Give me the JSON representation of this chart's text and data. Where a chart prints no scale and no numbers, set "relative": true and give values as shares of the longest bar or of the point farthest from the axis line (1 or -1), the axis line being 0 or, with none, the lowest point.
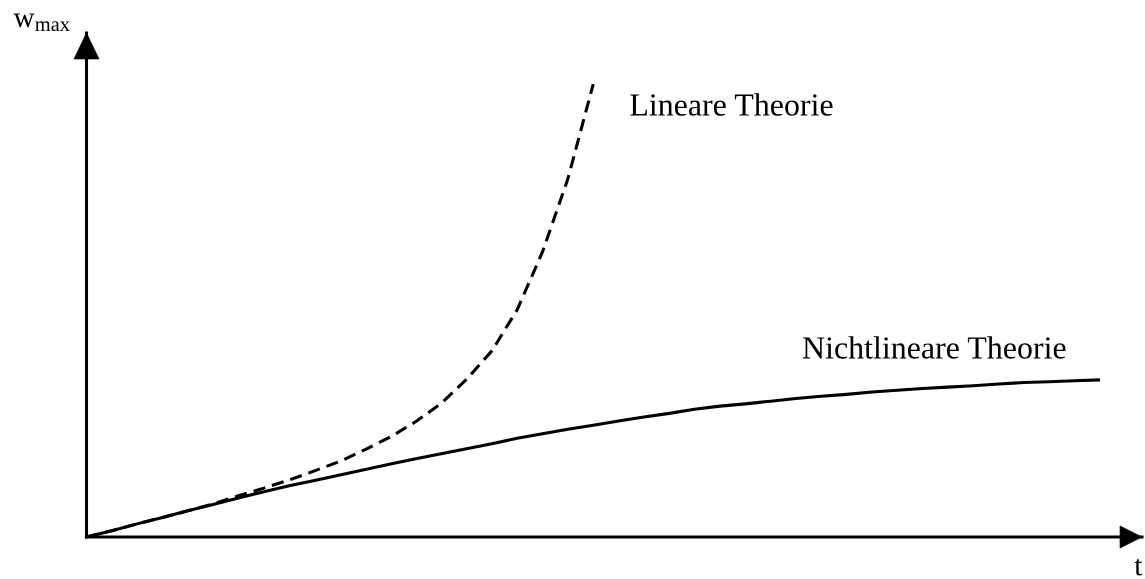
{
  "chart_data": {
    "type": "line",
    "relative": true,
    "xlabel": "t",
    "ylabel": "w$_{max}$",
    "categories": [
      null,
      null,
      null,
      null,
      null,
      null,
      null,
      null,
      null,
      null,
      null,
      null,
      null,
      null,
      null,
      null,
      null,
      null,
      null,
      null,
      null,
      null,
      null,
      null,
      null,
      null,
      null,
      null,
      null,
      null,
      null,
      null,
      null,
      null,
      null,
      null,
      null,
      null,
      null,
      null,
      null
    ],
    "series": [
      {
        "name": "Lineare Theorie",
        "color": "#000000",
        "line_style": "dashed",
        "values": [
          0,
          0.014,
          0.029,
          0.043,
          0.058,
          0.073,
          0.091,
          0.108,
          0.126,
          0.146,
          0.167,
          0.193,
          0.221,
          0.255,
          0.295,
          0.348,
          0.411,
          0.502,
          0.63,
          0.791,
          1.0,
          null,
          null,
          null,
          null,
          null,
          null,
          null,
          null,
          null,
          null,
          null,
          null,
          null,
          null,
          null,
          null,
          null,
          null,
          null,
          null
        ]
      },
      {
        "name": "Nichtlineare Theorie",
        "color": "#000000",
        "line_style": "solid",
        "values": [
          0,
          0.014,
          0.029,
          0.043,
          0.058,
          0.072,
          0.086,
          0.1,
          0.113,
          0.125,
          0.137,
          0.149,
          0.161,
          0.173,
          0.184,
          0.195,
          0.206,
          0.218,
          0.228,
          0.238,
          0.247,
          0.256,
          0.265,
          0.273,
          0.282,
          0.289,
          0.294,
          0.3,
          0.306,
          0.311,
          0.315,
          0.32,
          0.324,
          0.328,
          0.331,
          0.334,
          0.338,
          0.341,
          0.343,
          0.345,
          0.347
        ]
      }
    ]
  }
}
